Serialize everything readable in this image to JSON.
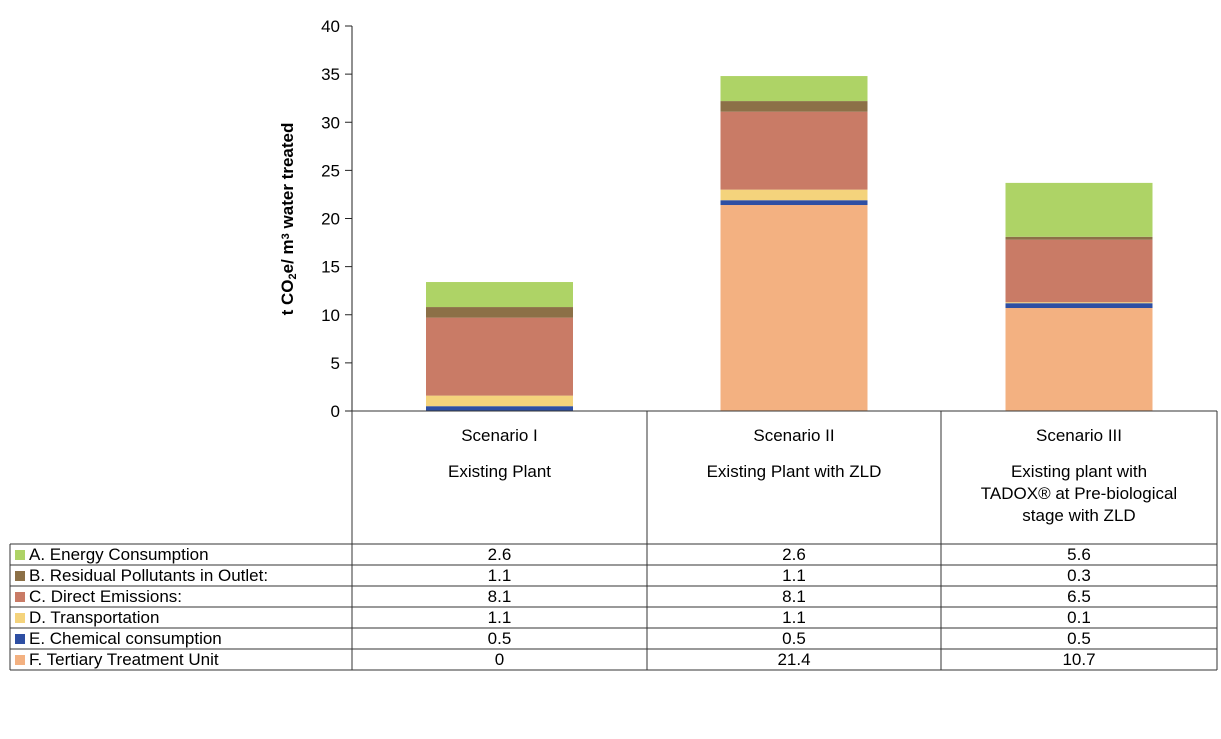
{
  "chart_data": {
    "type": "bar",
    "stacked": true,
    "ylabel_parts": [
      "t CO",
      "2",
      "e/ m",
      "3",
      " water treated"
    ],
    "ylim": [
      0,
      40
    ],
    "yticks": [
      0,
      5,
      10,
      15,
      20,
      25,
      30,
      35,
      40
    ],
    "grid": false,
    "categories": [
      "Scenario I",
      "Scenario II",
      "Scenario III"
    ],
    "category_subtitles": [
      [
        "Existing Plant"
      ],
      [
        "Existing Plant with ZLD"
      ],
      [
        "Existing plant with",
        "TADOX® at Pre-biological",
        "stage with ZLD"
      ]
    ],
    "series": [
      {
        "name": "A. Energy Consumption",
        "color": "#aed366",
        "values": [
          2.6,
          2.6,
          5.6
        ]
      },
      {
        "name": "B. Residual Pollutants in Outlet:",
        "color": "#8c7047",
        "values": [
          1.1,
          1.1,
          0.3
        ]
      },
      {
        "name": "C. Direct Emissions:",
        "color": "#c97b66",
        "values": [
          8.1,
          8.1,
          6.5
        ]
      },
      {
        "name": "D. Transportation",
        "color": "#f4d37c",
        "values": [
          1.1,
          1.1,
          0.1
        ]
      },
      {
        "name": "E. Chemical consumption",
        "color": "#2e4fa3",
        "values": [
          0.5,
          0.5,
          0.5
        ]
      },
      {
        "name": "F. Tertiary Treatment Unit",
        "color": "#f3b181",
        "values": [
          0,
          21.4,
          10.7
        ]
      }
    ],
    "value_labels": [
      [
        "2.6",
        "2.6",
        "5.6"
      ],
      [
        "1.1",
        "1.1",
        "0.3"
      ],
      [
        "8.1",
        "8.1",
        "6.5"
      ],
      [
        "1.1",
        "1.1",
        "0.1"
      ],
      [
        "0.5",
        "0.5",
        "0.5"
      ],
      [
        "0",
        "21.4",
        "10.7"
      ]
    ]
  }
}
